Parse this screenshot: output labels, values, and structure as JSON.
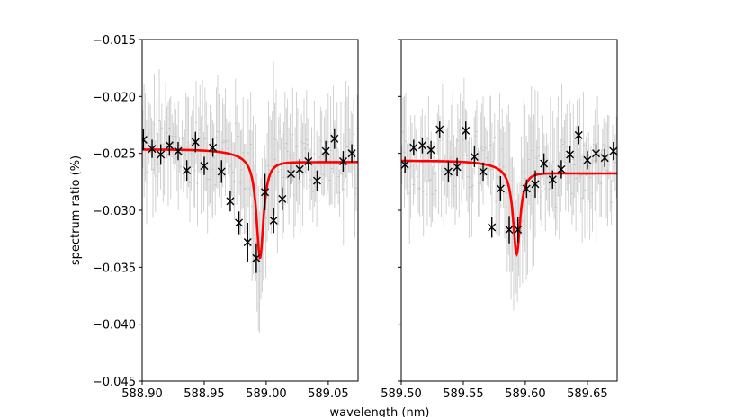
{
  "chart_data": [
    {
      "type": "line",
      "panel": "left",
      "xlim": [
        588.9,
        589.074
      ],
      "ylim": [
        -0.045,
        -0.015
      ],
      "xticks": [
        "588.90",
        "588.95",
        "589.00",
        "589.05"
      ],
      "xtick_values": [
        588.9,
        588.95,
        589.0,
        589.05
      ],
      "yticks": [
        "−0.015",
        "−0.020",
        "−0.025",
        "−0.030",
        "−0.035",
        "−0.040",
        "−0.045"
      ],
      "ytick_values": [
        -0.015,
        -0.02,
        -0.025,
        -0.03,
        -0.035,
        -0.04,
        -0.045
      ],
      "ylabel": "spectrum ratio (%)",
      "binned_points": [
        {
          "x": 588.901,
          "y": -0.0238,
          "err": 0.0009
        },
        {
          "x": 588.908,
          "y": -0.0246,
          "err": 0.0008
        },
        {
          "x": 588.915,
          "y": -0.0251,
          "err": 0.0009
        },
        {
          "x": 588.922,
          "y": -0.0243,
          "err": 0.0009
        },
        {
          "x": 588.929,
          "y": -0.0248,
          "err": 0.0008
        },
        {
          "x": 588.936,
          "y": -0.0265,
          "err": 0.0009
        },
        {
          "x": 588.943,
          "y": -0.024,
          "err": 0.0009
        },
        {
          "x": 588.95,
          "y": -0.0261,
          "err": 0.0008
        },
        {
          "x": 588.957,
          "y": -0.0245,
          "err": 0.0008
        },
        {
          "x": 588.964,
          "y": -0.0266,
          "err": 0.001
        },
        {
          "x": 588.971,
          "y": -0.0292,
          "err": 0.0009
        },
        {
          "x": 588.978,
          "y": -0.0311,
          "err": 0.001
        },
        {
          "x": 588.985,
          "y": -0.0328,
          "err": 0.0017
        },
        {
          "x": 588.992,
          "y": -0.0342,
          "err": 0.0013
        },
        {
          "x": 588.999,
          "y": -0.0284,
          "err": 0.0016
        },
        {
          "x": 589.006,
          "y": -0.0309,
          "err": 0.0011
        },
        {
          "x": 589.013,
          "y": -0.029,
          "err": 0.001
        },
        {
          "x": 589.02,
          "y": -0.0268,
          "err": 0.0009
        },
        {
          "x": 589.027,
          "y": -0.0264,
          "err": 0.0009
        },
        {
          "x": 589.034,
          "y": -0.0257,
          "err": 0.0008
        },
        {
          "x": 589.041,
          "y": -0.0274,
          "err": 0.0009
        },
        {
          "x": 589.048,
          "y": -0.0248,
          "err": 0.0009
        },
        {
          "x": 589.055,
          "y": -0.0237,
          "err": 0.0009
        },
        {
          "x": 589.062,
          "y": -0.0257,
          "err": 0.0009
        },
        {
          "x": 589.069,
          "y": -0.025,
          "err": 0.0008
        }
      ],
      "fit_model": {
        "type": "lorentzian",
        "center": 588.995,
        "gamma": 0.0035,
        "depth": 0.0089,
        "baseline": -0.0252,
        "baseline_slope": -0.00055,
        "baseline_halfwidth": 0.0275,
        "baseline_center": 588.99
      }
    },
    {
      "type": "line",
      "panel": "right",
      "xlim": [
        589.5,
        589.674
      ],
      "ylim": [
        -0.045,
        -0.015
      ],
      "xticks": [
        "589.50",
        "589.55",
        "589.60",
        "589.65"
      ],
      "xtick_values": [
        589.5,
        589.55,
        589.6,
        589.65
      ],
      "yticks": [],
      "ytick_values": [
        -0.015,
        -0.02,
        -0.025,
        -0.03,
        -0.035,
        -0.04,
        -0.045
      ],
      "binned_points": [
        {
          "x": 589.503,
          "y": -0.026,
          "err": 0.0007
        },
        {
          "x": 589.51,
          "y": -0.0245,
          "err": 0.0007
        },
        {
          "x": 589.517,
          "y": -0.0243,
          "err": 0.0007
        },
        {
          "x": 589.524,
          "y": -0.0247,
          "err": 0.0008
        },
        {
          "x": 589.531,
          "y": -0.0229,
          "err": 0.0007
        },
        {
          "x": 589.538,
          "y": -0.0266,
          "err": 0.0009
        },
        {
          "x": 589.545,
          "y": -0.0262,
          "err": 0.0008
        },
        {
          "x": 589.552,
          "y": -0.023,
          "err": 0.0008
        },
        {
          "x": 589.559,
          "y": -0.0253,
          "err": 0.0009
        },
        {
          "x": 589.566,
          "y": -0.0266,
          "err": 0.0008
        },
        {
          "x": 589.573,
          "y": -0.0315,
          "err": 0.0009
        },
        {
          "x": 589.58,
          "y": -0.0281,
          "err": 0.0011
        },
        {
          "x": 589.587,
          "y": -0.0317,
          "err": 0.0012
        },
        {
          "x": 589.594,
          "y": -0.0317,
          "err": 0.0011
        },
        {
          "x": 589.601,
          "y": -0.0281,
          "err": 0.0008
        },
        {
          "x": 589.608,
          "y": -0.0277,
          "err": 0.0012
        },
        {
          "x": 589.615,
          "y": -0.0259,
          "err": 0.0009
        },
        {
          "x": 589.622,
          "y": -0.0273,
          "err": 0.0008
        },
        {
          "x": 589.629,
          "y": -0.0264,
          "err": 0.0008
        },
        {
          "x": 589.636,
          "y": -0.0251,
          "err": 0.0007
        },
        {
          "x": 589.643,
          "y": -0.0234,
          "err": 0.0008
        },
        {
          "x": 589.65,
          "y": -0.0256,
          "err": 0.0008
        },
        {
          "x": 589.657,
          "y": -0.025,
          "err": 0.0008
        },
        {
          "x": 589.664,
          "y": -0.0254,
          "err": 0.0008
        },
        {
          "x": 589.671,
          "y": -0.0248,
          "err": 0.0008
        }
      ],
      "fit_model": {
        "type": "lorentzian",
        "center": 589.593,
        "gamma": 0.0035,
        "depth": 0.0076,
        "baseline": -0.0262,
        "baseline_slope": -0.00055,
        "baseline_halfwidth": 0.0275,
        "baseline_center": 589.59
      }
    }
  ],
  "figure": {
    "xlabel": "wavelength (nm)",
    "colors": {
      "fit": "#ff0000",
      "binned": "#000000",
      "raw": "#cccccc",
      "axes": "#000000"
    }
  }
}
